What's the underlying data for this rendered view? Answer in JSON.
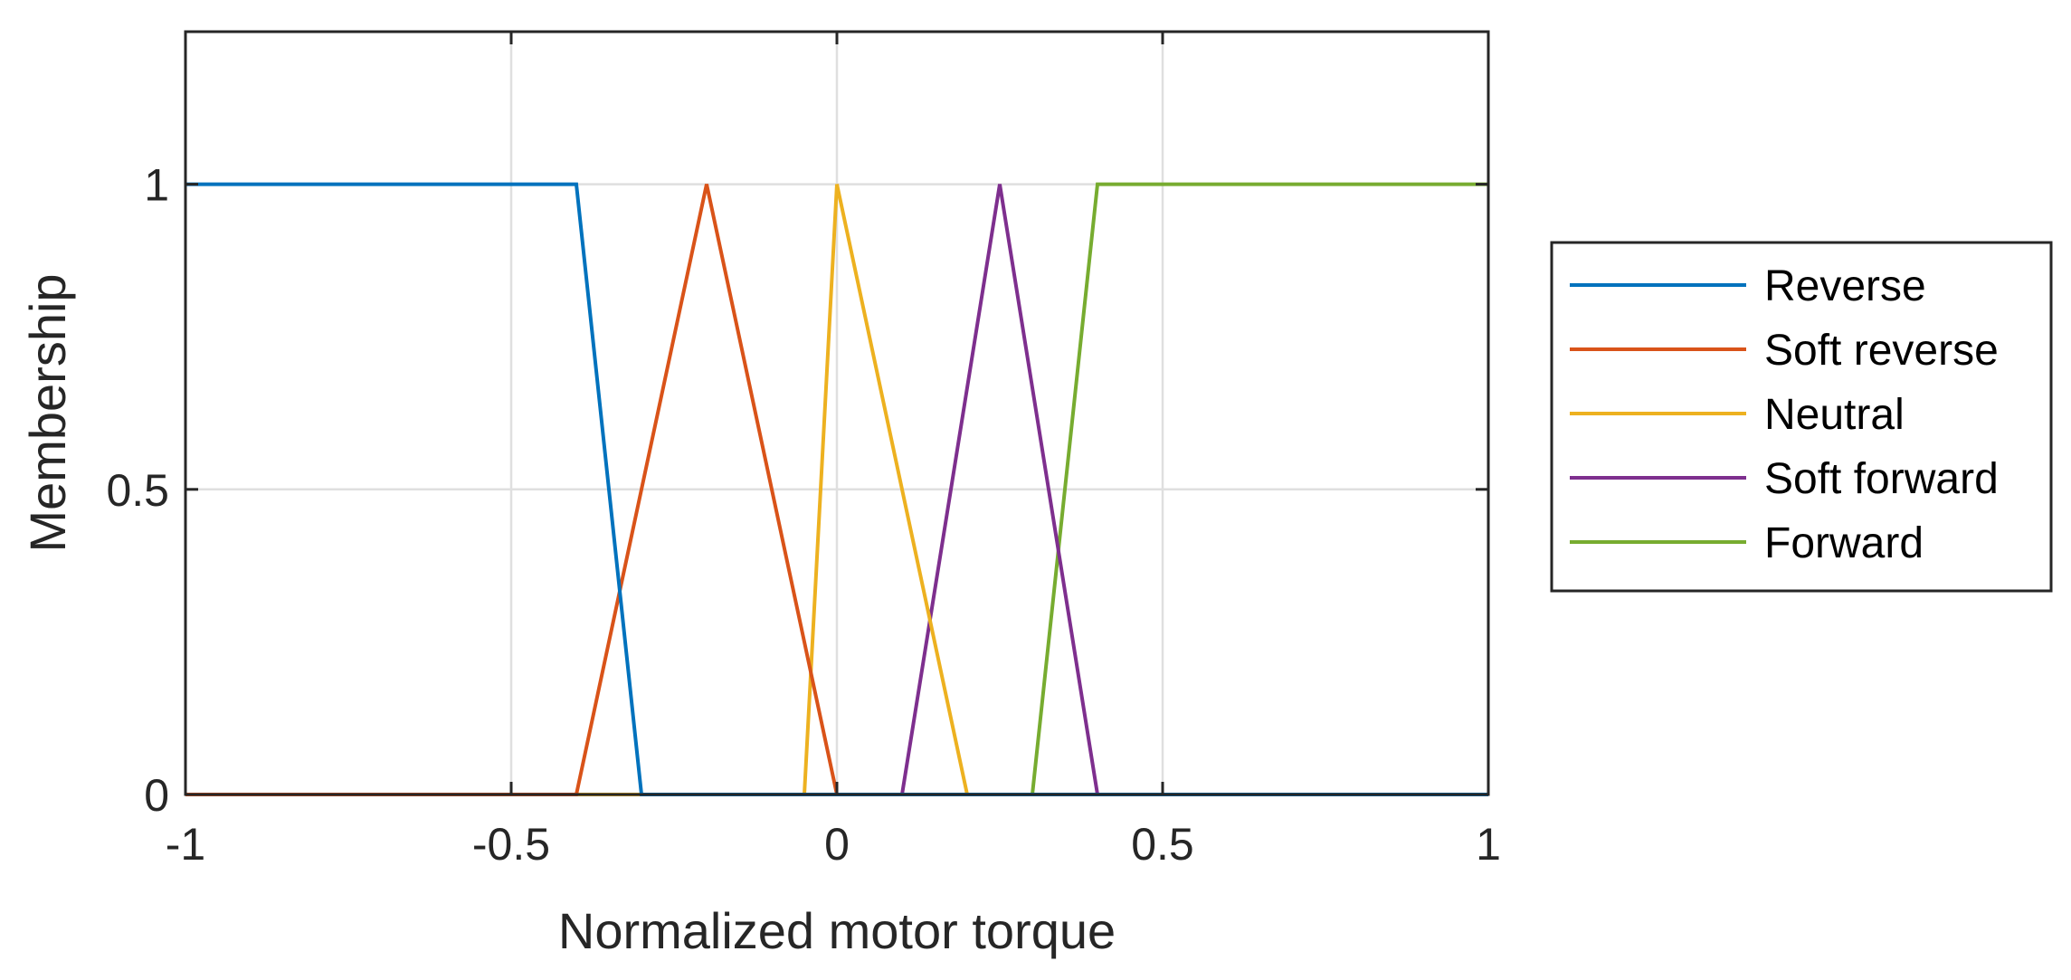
{
  "chart_data": {
    "type": "line",
    "title": "",
    "xlabel": "Normalized motor torque",
    "ylabel": "Membership",
    "xlim": [
      -1,
      1
    ],
    "ylim": [
      0,
      1.25
    ],
    "xticks": [
      -1,
      -0.5,
      0,
      0.5,
      1
    ],
    "xtick_labels": [
      "-1",
      "-0.5",
      "0",
      "0.5",
      "1"
    ],
    "yticks": [
      0,
      0.5,
      1
    ],
    "ytick_labels": [
      "0",
      "0.5",
      "1"
    ],
    "grid": true,
    "legend_position": "outside-right",
    "series": [
      {
        "name": "Reverse",
        "color": "#0072BD",
        "x": [
          -1,
          -0.4,
          -0.3,
          1
        ],
        "y": [
          1,
          1,
          0,
          0
        ]
      },
      {
        "name": "Soft reverse",
        "color": "#D95319",
        "x": [
          -1,
          -0.4,
          -0.2,
          0,
          1
        ],
        "y": [
          0,
          0,
          1,
          0,
          0
        ]
      },
      {
        "name": "Neutral",
        "color": "#EDB120",
        "x": [
          -1,
          -0.05,
          0,
          0.2,
          1
        ],
        "y": [
          0,
          0,
          1,
          0,
          0
        ]
      },
      {
        "name": "Soft forward",
        "color": "#7E2F8E",
        "x": [
          -1,
          0.1,
          0.25,
          0.4,
          1
        ],
        "y": [
          0,
          0,
          1,
          0,
          0
        ]
      },
      {
        "name": "Forward",
        "color": "#77AC30",
        "x": [
          -1,
          0.3,
          0.4,
          1
        ],
        "y": [
          0,
          0,
          1,
          1
        ]
      }
    ]
  }
}
